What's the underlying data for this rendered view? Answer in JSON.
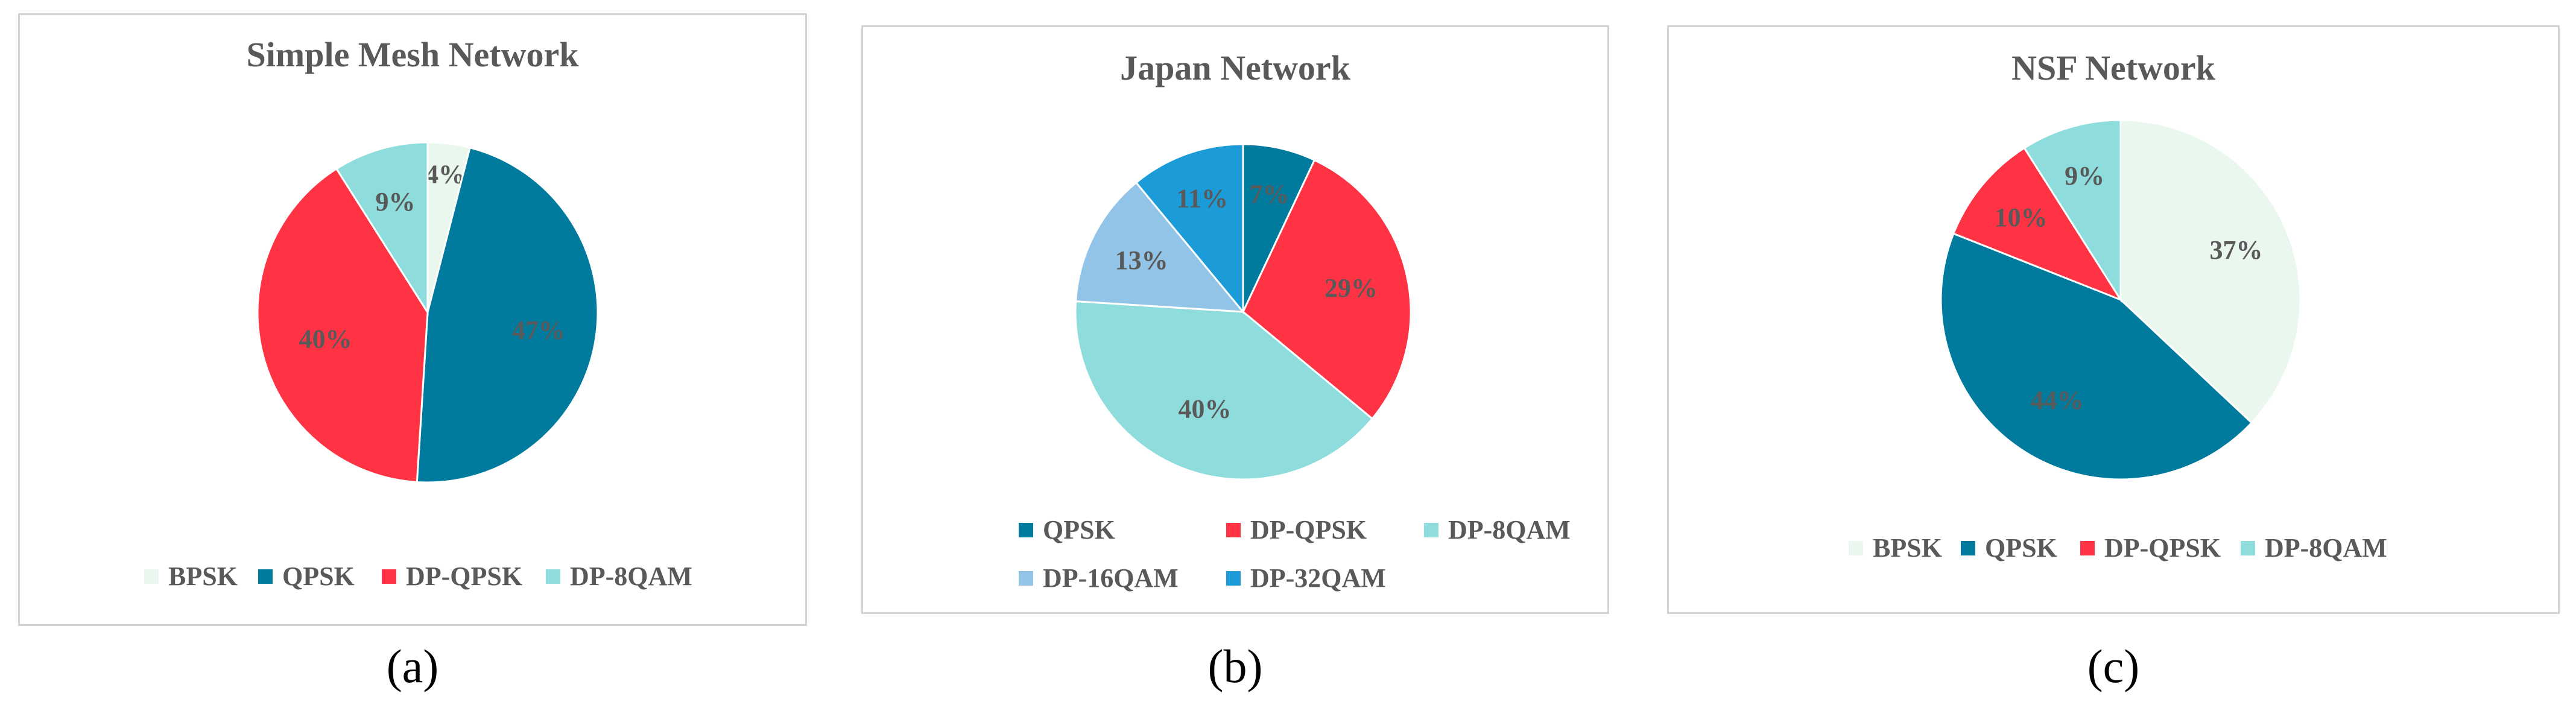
{
  "captions": [
    "(a)",
    "(b)",
    "(c)"
  ],
  "chart_data": [
    {
      "type": "pie",
      "title": "Simple Mesh Network",
      "categories": [
        "BPSK",
        "QPSK",
        "DP-QPSK",
        "DP-8QAM"
      ],
      "values": [
        4,
        47,
        40,
        9
      ],
      "labels": [
        "4%",
        "47%",
        "40%",
        "9%"
      ],
      "colors": [
        "#eaf7ee",
        "#007b9e",
        "#ff3344",
        "#8fdcdc"
      ],
      "legend_placement": "bottom"
    },
    {
      "type": "pie",
      "title": "Japan Network",
      "categories": [
        "QPSK",
        "DP-QPSK",
        "DP-8QAM",
        "DP-16QAM",
        "DP-32QAM"
      ],
      "values": [
        7,
        29,
        40,
        13,
        11
      ],
      "labels": [
        "7%",
        "29%",
        "40%",
        "13%",
        "11%"
      ],
      "colors": [
        "#007b9e",
        "#ff3344",
        "#8fdcdc",
        "#91c4e6",
        "#1b9cd8"
      ],
      "legend_placement": "bottom"
    },
    {
      "type": "pie",
      "title": "NSF Network",
      "categories": [
        "BPSK",
        "QPSK",
        "DP-QPSK",
        "DP-8QAM"
      ],
      "values": [
        37,
        44,
        10,
        9
      ],
      "labels": [
        "37%",
        "44%",
        "10%",
        "9%"
      ],
      "colors": [
        "#eaf7ee",
        "#007b9e",
        "#ff3344",
        "#8fdcdc"
      ],
      "legend_placement": "bottom"
    }
  ]
}
